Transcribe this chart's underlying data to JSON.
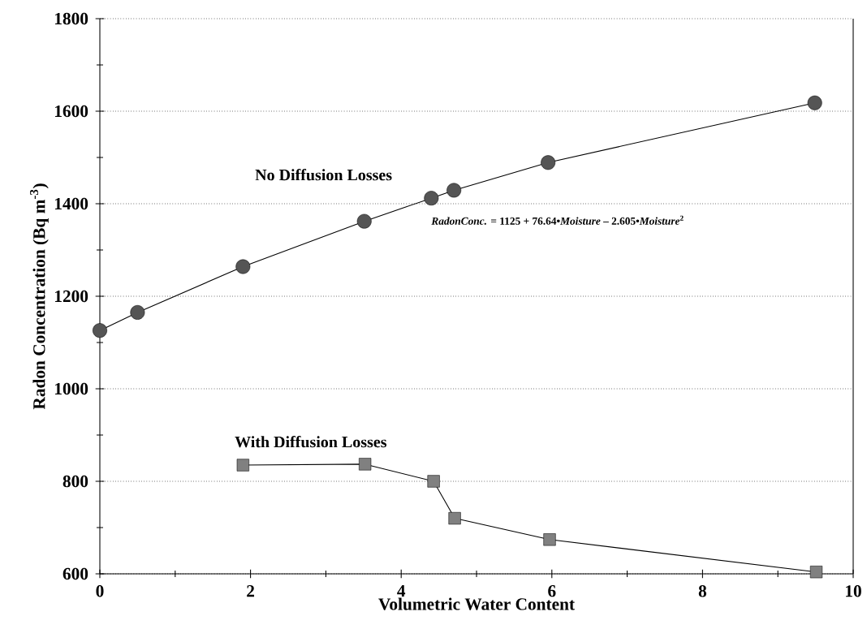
{
  "chart_data": {
    "type": "line",
    "xlabel": "Volumetric Water Content",
    "ylabel": "Radon Concentration (Bq m$^{-3}$)",
    "xlim": [
      0,
      10
    ],
    "ylim": [
      600,
      1800
    ],
    "xticks": [
      0,
      2,
      4,
      6,
      8,
      10
    ],
    "yticks": [
      600,
      800,
      1000,
      1200,
      1400,
      1600,
      1800
    ],
    "grid": "y",
    "line_style": "solid",
    "annotations": [
      "*RadonConc.* = 1125 + 76.64•*Moisture* – 2.605•*Moisture*$^{2}$"
    ],
    "series": [
      {
        "name": "No Diffusion Losses",
        "color": "#555555",
        "marker": "circle",
        "x": [
          0,
          0.5,
          1.9,
          3.51,
          4.4,
          4.7,
          5.95,
          9.49
        ],
        "values": [
          1126,
          1165,
          1264,
          1362,
          1412,
          1429,
          1489,
          1618
        ]
      },
      {
        "name": "With Diffusion Losses",
        "color": "#808080",
        "marker": "square",
        "x": [
          1.9,
          3.52,
          4.43,
          4.71,
          5.97,
          9.51
        ],
        "values": [
          835,
          837,
          800,
          720,
          674,
          604
        ]
      }
    ]
  }
}
